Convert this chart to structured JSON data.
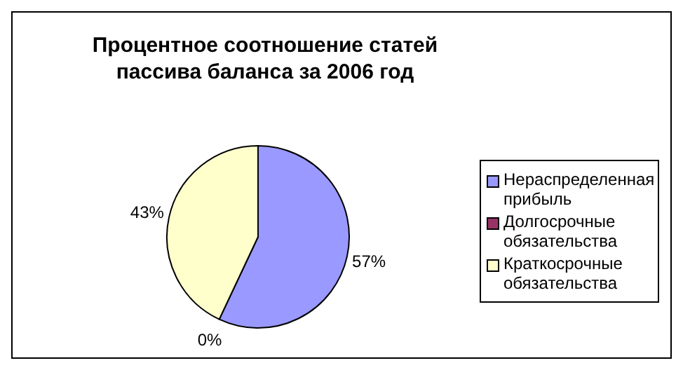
{
  "chart_data": {
    "type": "pie",
    "title": "Процентное соотношение статей пассива баланса за 2006 год",
    "categories": [
      "Нераспределенная прибыль",
      "Долгосрочные обязательства",
      "Краткосрочные обязательства"
    ],
    "values": [
      57,
      0,
      43
    ],
    "colors": [
      "#9999ff",
      "#993366",
      "#ffffcc"
    ],
    "value_labels": [
      "57%",
      "0%",
      "43%"
    ],
    "legend": "right"
  }
}
